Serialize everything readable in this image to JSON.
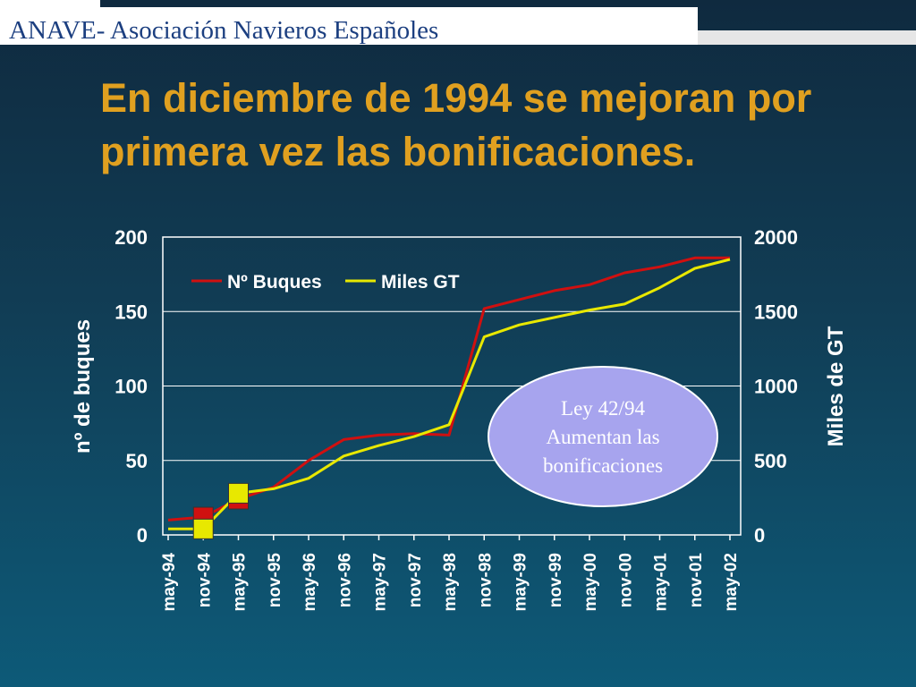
{
  "header": {
    "org_text": "ANAVE- Asociación Navieros Españoles"
  },
  "slide": {
    "title": "En diciembre de 1994 se mejoran por primera vez las bonificaciones."
  },
  "colors": {
    "title": "#e0a020",
    "buques": "#d01010",
    "gt": "#e8e800",
    "annotation_fill": "#a7a4ee"
  },
  "chart_data": {
    "type": "line",
    "title": "",
    "x": [
      "may-94",
      "nov-94",
      "may-95",
      "nov-95",
      "may-96",
      "nov-96",
      "may-97",
      "nov-97",
      "may-98",
      "nov-98",
      "may-99",
      "nov-99",
      "may-00",
      "nov-00",
      "may-01",
      "nov-01",
      "may-02"
    ],
    "left_axis": {
      "label": "nº de buques",
      "range": [
        0,
        200
      ],
      "ticks": [
        0,
        50,
        100,
        150,
        200
      ]
    },
    "right_axis": {
      "label": "Miles de GT",
      "range": [
        0,
        2000
      ],
      "ticks": [
        0,
        500,
        1000,
        1500,
        2000
      ]
    },
    "legend": {
      "placement": "top-left"
    },
    "series": [
      {
        "name": "Nº Buques",
        "axis": "left",
        "color": "#d01010",
        "values": [
          10,
          12,
          24,
          32,
          50,
          64,
          67,
          68,
          67,
          152,
          158,
          164,
          168,
          176,
          180,
          186,
          186
        ]
      },
      {
        "name": "Miles GT",
        "axis": "right",
        "color": "#e8e800",
        "values": [
          40,
          40,
          280,
          310,
          380,
          530,
          600,
          660,
          740,
          1330,
          1410,
          1460,
          1510,
          1550,
          1660,
          1790,
          1850
        ]
      }
    ],
    "highlight_points": [
      {
        "series": "Nº Buques",
        "x": "nov-94",
        "value": 12
      },
      {
        "series": "Nº Buques",
        "x": "may-95",
        "value": 24
      },
      {
        "series": "Miles GT",
        "x": "nov-94",
        "value": 40
      },
      {
        "series": "Miles GT",
        "x": "may-95",
        "value": 280
      }
    ],
    "annotation": {
      "text_lines": [
        "Ley 42/94",
        "Aumentan las",
        "bonificaciones"
      ]
    }
  }
}
